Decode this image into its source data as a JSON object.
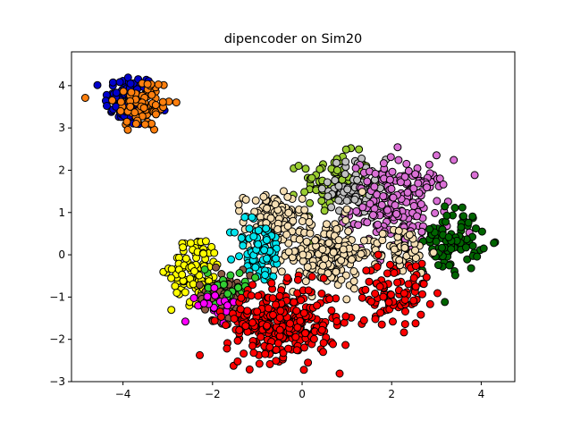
{
  "chart_data": {
    "type": "scatter",
    "title": "dipencoder on Sim20",
    "xlabel": "",
    "ylabel": "",
    "xlim": [
      -5.15,
      4.75
    ],
    "ylim": [
      -3.0,
      4.8
    ],
    "xticks": [
      -4,
      -2,
      0,
      2,
      4
    ],
    "yticks": [
      -3,
      -2,
      -1,
      0,
      1,
      2,
      3,
      4
    ],
    "grid": false,
    "legend": "none",
    "marker_edge_color": "#000000",
    "clusters": [
      {
        "color": "#0000cd",
        "center": [
          -3.85,
          3.65
        ],
        "spread": [
          0.28,
          0.32
        ],
        "n": 90
      },
      {
        "color": "#ff7f0e",
        "center": [
          -3.55,
          3.55
        ],
        "spread": [
          0.32,
          0.34
        ],
        "n": 80
      },
      {
        "color": "#9acd32",
        "center": [
          0.75,
          1.7
        ],
        "spread": [
          0.38,
          0.34
        ],
        "n": 90
      },
      {
        "color": "#c0c0c0",
        "center": [
          1.25,
          1.55
        ],
        "spread": [
          0.32,
          0.36
        ],
        "n": 90
      },
      {
        "color": "#da70d6",
        "center": [
          2.2,
          1.15
        ],
        "spread": [
          0.55,
          0.55
        ],
        "n": 200
      },
      {
        "color": "#006400",
        "center": [
          3.35,
          0.35
        ],
        "spread": [
          0.32,
          0.38
        ],
        "n": 90
      },
      {
        "color": "#f5deb3",
        "center": [
          -0.65,
          0.85
        ],
        "spread": [
          0.32,
          0.3
        ],
        "n": 110
      },
      {
        "color": "#f5deb3",
        "center": [
          0.55,
          0.05
        ],
        "spread": [
          0.48,
          0.42
        ],
        "n": 180
      },
      {
        "color": "#f5deb3",
        "center": [
          2.2,
          0.1
        ],
        "spread": [
          0.32,
          0.28
        ],
        "n": 60
      },
      {
        "color": "#00e5ee",
        "center": [
          -0.95,
          0.1
        ],
        "spread": [
          0.28,
          0.38
        ],
        "n": 80
      },
      {
        "color": "#ffff00",
        "center": [
          -2.35,
          -0.35
        ],
        "spread": [
          0.28,
          0.4
        ],
        "n": 110
      },
      {
        "color": "#8b5a44",
        "center": [
          -1.75,
          -0.95
        ],
        "spread": [
          0.3,
          0.3
        ],
        "n": 55
      },
      {
        "color": "#32cd32",
        "center": [
          -1.6,
          -0.75
        ],
        "spread": [
          0.28,
          0.25
        ],
        "n": 25
      },
      {
        "color": "#ff00ff",
        "center": [
          -1.9,
          -1.2
        ],
        "spread": [
          0.22,
          0.18
        ],
        "n": 18
      },
      {
        "color": "#ff0000",
        "center": [
          -0.45,
          -1.6
        ],
        "spread": [
          0.62,
          0.42
        ],
        "n": 330
      },
      {
        "color": "#ff0000",
        "center": [
          2.05,
          -0.9
        ],
        "spread": [
          0.38,
          0.38
        ],
        "n": 90
      }
    ]
  }
}
